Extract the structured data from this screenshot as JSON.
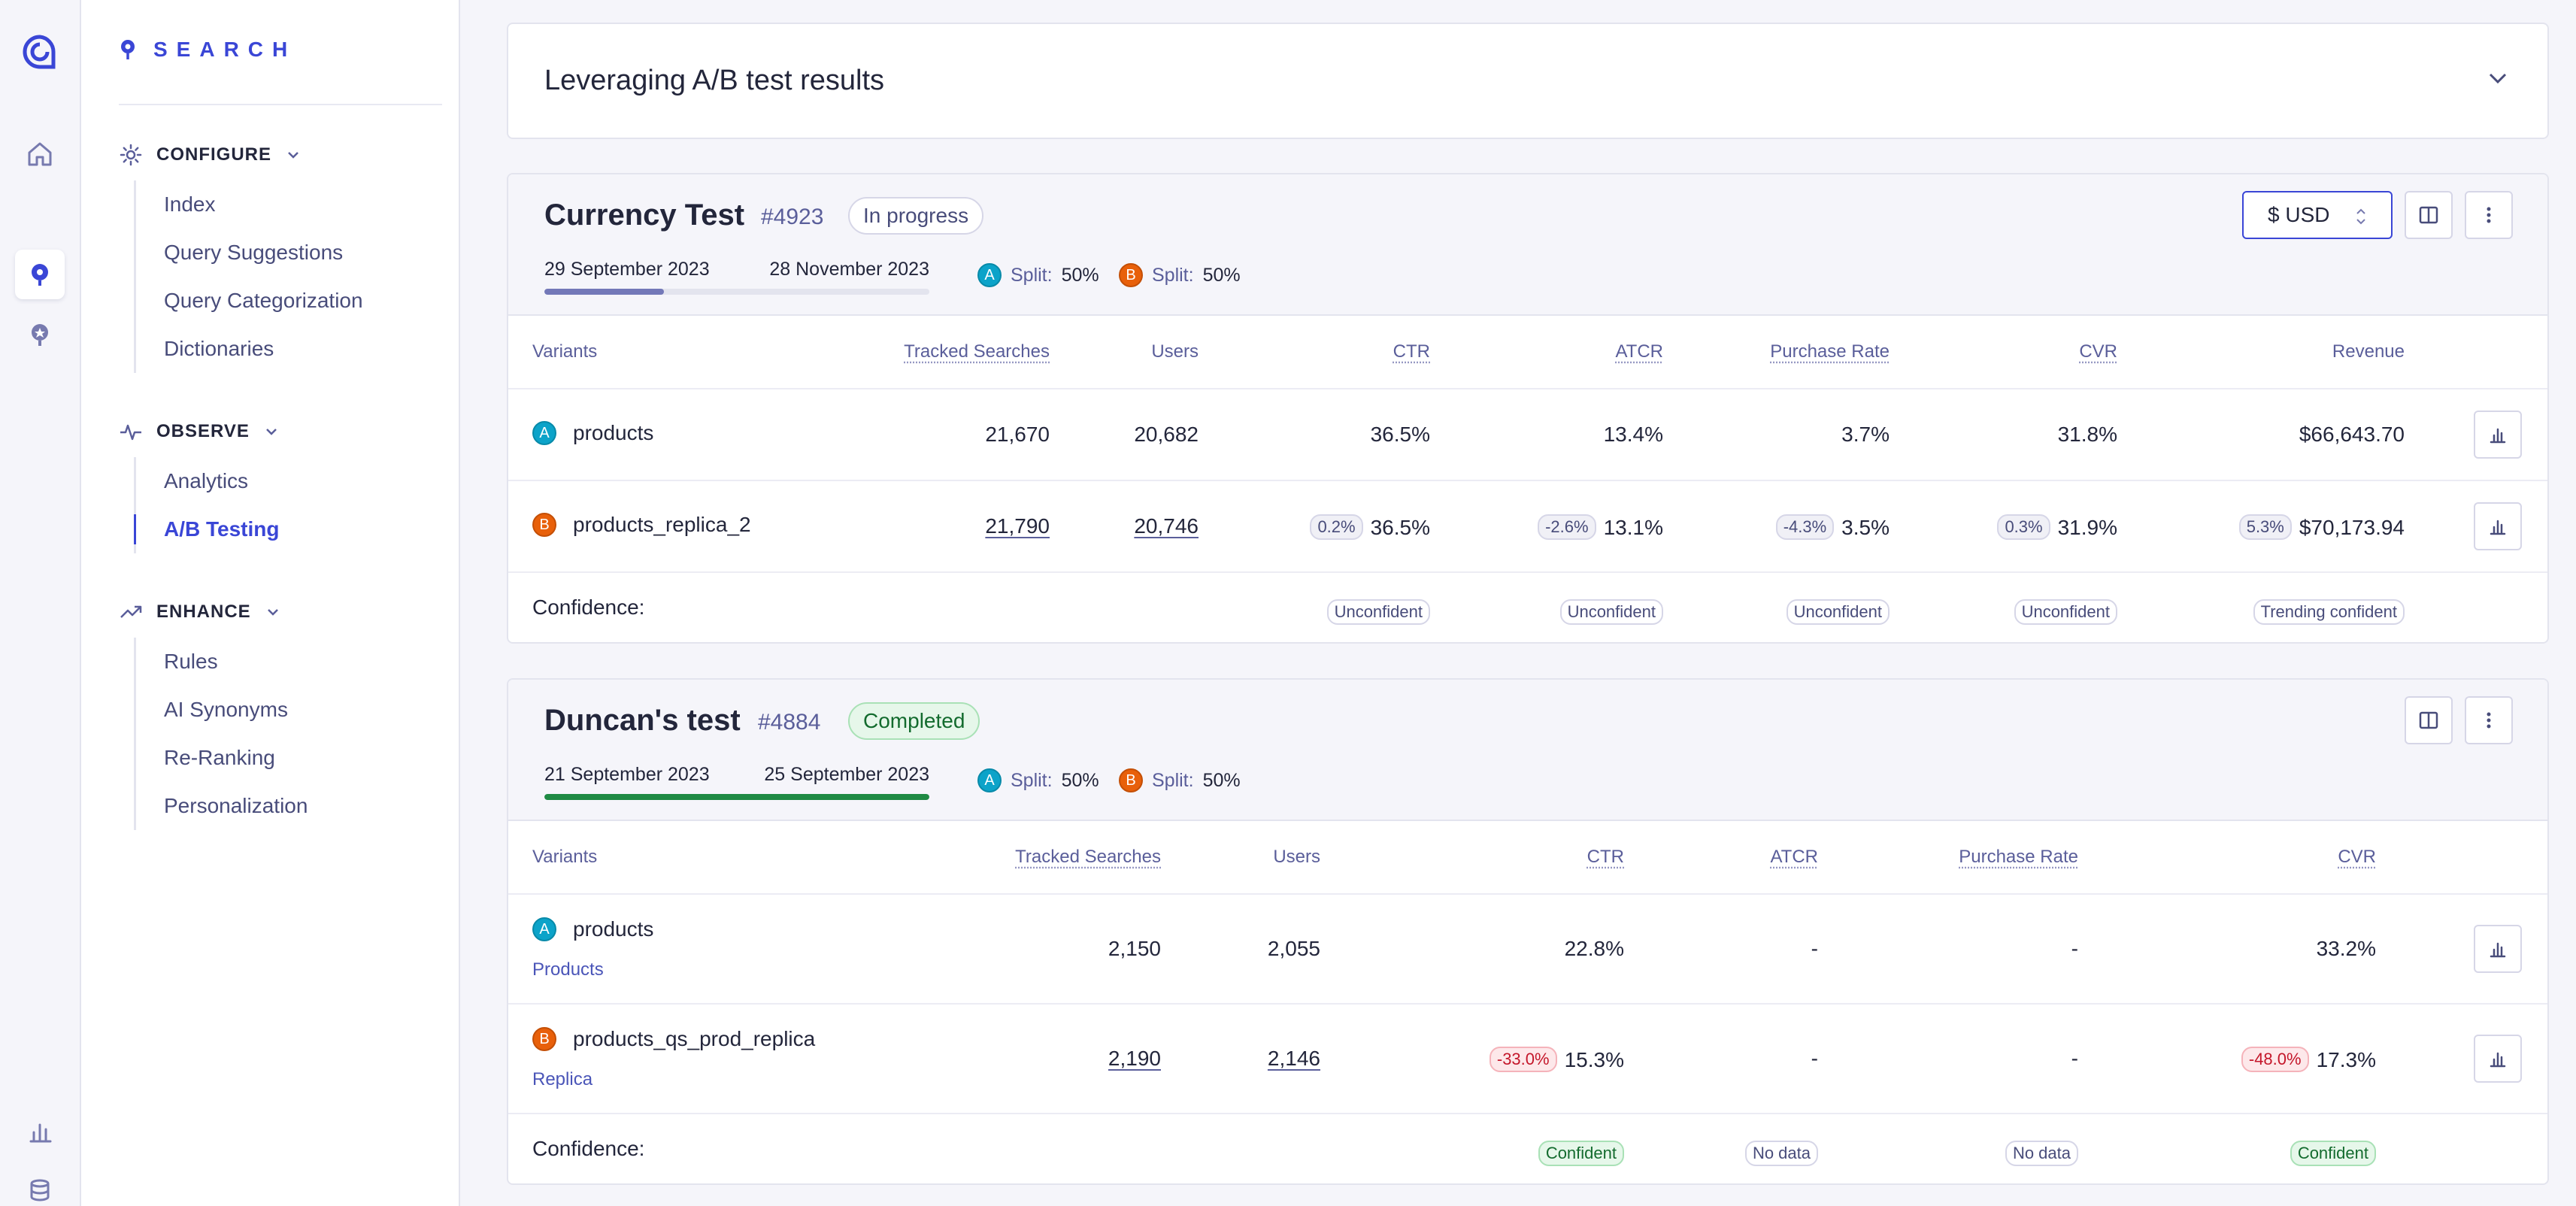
{
  "nav": {
    "brand_text": "SEARCH",
    "sections": [
      {
        "title": "CONFIGURE",
        "items": [
          "Index",
          "Query Suggestions",
          "Query Categorization",
          "Dictionaries"
        ]
      },
      {
        "title": "OBSERVE",
        "items": [
          "Analytics",
          "A/B Testing"
        ]
      },
      {
        "title": "ENHANCE",
        "items": [
          "Rules",
          "AI Synonyms",
          "Re-Ranking",
          "Personalization"
        ]
      }
    ],
    "active_item": "A/B Testing"
  },
  "accordion": {
    "title": "Leveraging A/B test results"
  },
  "tests": [
    {
      "name": "Currency Test",
      "id": "#4923",
      "status": "In progress",
      "start_date": "29 September 2023",
      "end_date": "28 November 2023",
      "progress": 0.31,
      "progress_color": "#7378b8",
      "split_a_label": "Split:",
      "split_a": "50%",
      "split_b_label": "Split:",
      "split_b": "50%",
      "currency": "$ USD",
      "headers": {
        "variants": "Variants",
        "tracked": "Tracked Searches",
        "users": "Users",
        "ctr": "CTR",
        "atcr": "ATCR",
        "purchase": "Purchase Rate",
        "cvr": "CVR",
        "revenue": "Revenue"
      },
      "variants": [
        {
          "letter": "A",
          "name": "products",
          "sub": "",
          "tracked": "21,670",
          "users": "20,682",
          "ctr": "36.5%",
          "atcr": "13.4%",
          "purchase": "3.7%",
          "cvr": "31.8%",
          "revenue": "$66,643.70"
        },
        {
          "letter": "B",
          "name": "products_replica_2",
          "sub": "",
          "tracked": "21,790",
          "users": "20,746",
          "ctr": "36.5%",
          "ctr_delta": "0.2%",
          "atcr": "13.1%",
          "atcr_delta": "-2.6%",
          "purchase": "3.5%",
          "purchase_delta": "-4.3%",
          "cvr": "31.9%",
          "cvr_delta": "0.3%",
          "revenue": "$70,173.94",
          "revenue_delta": "5.3%"
        }
      ],
      "confidence_label": "Confidence:",
      "confidence": {
        "ctr": "Unconfident",
        "atcr": "Unconfident",
        "purchase": "Unconfident",
        "cvr": "Unconfident",
        "revenue": "Trending confident"
      }
    },
    {
      "name": "Duncan's test",
      "id": "#4884",
      "status": "Completed",
      "start_date": "21 September 2023",
      "end_date": "25 September 2023",
      "progress": 1.0,
      "progress_color": "#1f8a44",
      "split_a_label": "Split:",
      "split_a": "50%",
      "split_b_label": "Split:",
      "split_b": "50%",
      "headers": {
        "variants": "Variants",
        "tracked": "Tracked Searches",
        "users": "Users",
        "ctr": "CTR",
        "atcr": "ATCR",
        "purchase": "Purchase Rate",
        "cvr": "CVR"
      },
      "variants": [
        {
          "letter": "A",
          "name": "products",
          "sub": "Products",
          "tracked": "2,150",
          "users": "2,055",
          "ctr": "22.8%",
          "atcr": "-",
          "purchase": "-",
          "cvr": "33.2%"
        },
        {
          "letter": "B",
          "name": "products_qs_prod_replica",
          "sub": "Replica",
          "tracked": "2,190",
          "users": "2,146",
          "ctr": "15.3%",
          "ctr_delta": "-33.0%",
          "atcr": "-",
          "purchase": "-",
          "cvr": "17.3%",
          "cvr_delta": "-48.0%"
        }
      ],
      "confidence_label": "Confidence:",
      "confidence": {
        "ctr": "Confident",
        "atcr": "No data",
        "purchase": "No data",
        "cvr": "Confident"
      }
    }
  ]
}
